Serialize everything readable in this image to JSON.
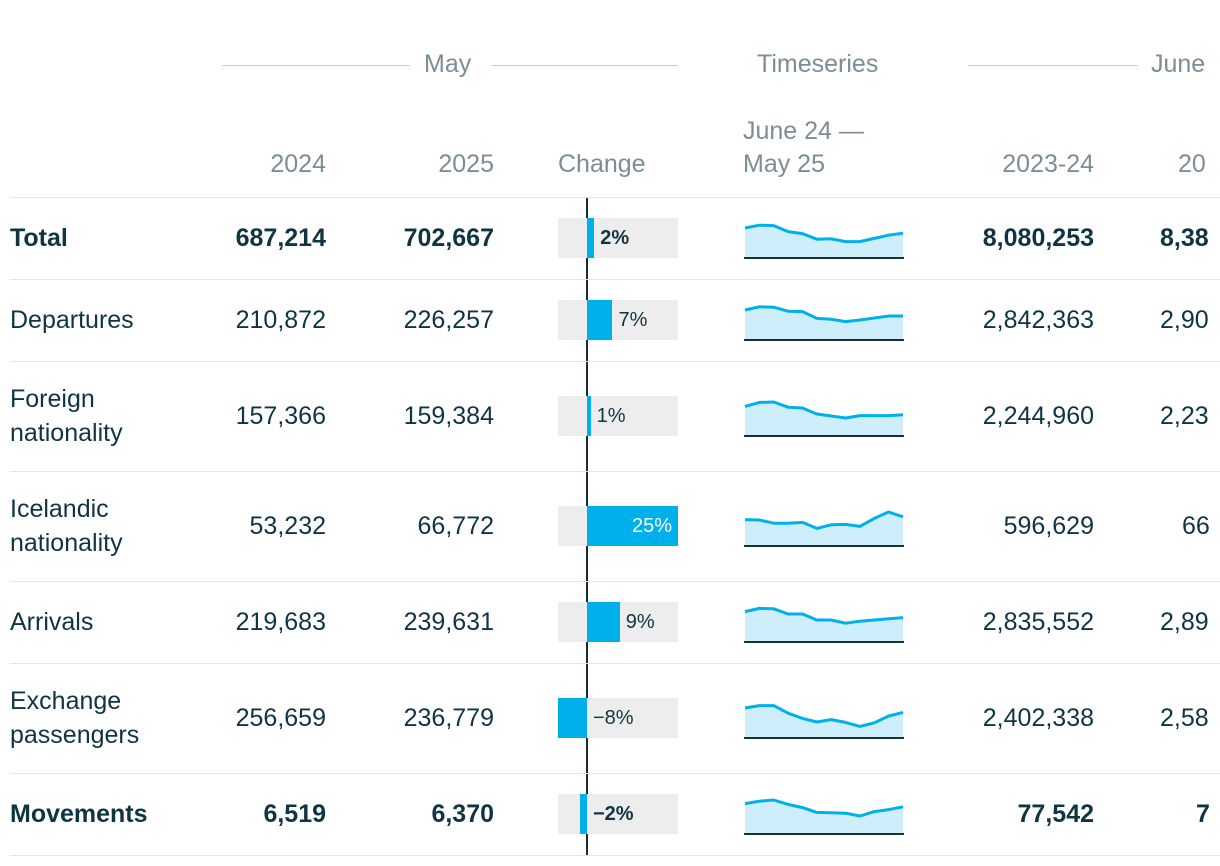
{
  "header": {
    "groups": {
      "may": "May",
      "timeseries": "Timeseries",
      "june": "June"
    },
    "columns": {
      "may_2024": "2024",
      "may_2025": "2025",
      "change": "Change",
      "timeseries_line1": "June 24 —",
      "timeseries_line2": "May 25",
      "period_2023_24": "2023-24",
      "period_next": "20"
    }
  },
  "colors": {
    "accent": "#00b0eb",
    "area_fill": "#cdeefa",
    "text": "#0f3442",
    "muted": "#7c8d96",
    "bar_background": "#ededee"
  },
  "chart_data": {
    "type": "table",
    "change_scale_max_percent": 25,
    "rows": [
      {
        "label_lines": [
          "Total"
        ],
        "bold": true,
        "may_2024": "687,214",
        "may_2025": "702,667",
        "change_pct": 2,
        "change_label": "2%",
        "timeseries": [
          7.5,
          8.2,
          8.1,
          6.6,
          6.1,
          4.7,
          4.8,
          4.1,
          4.1,
          4.9,
          5.7,
          6.2
        ],
        "period_2023_24": "8,080,253",
        "period_next": "8,38"
      },
      {
        "label_lines": [
          "Departures"
        ],
        "bold": false,
        "may_2024": "210,872",
        "may_2025": "226,257",
        "change_pct": 7,
        "change_label": "7%",
        "timeseries": [
          7.5,
          8.3,
          8.2,
          7.2,
          7.1,
          5.4,
          5.2,
          4.6,
          5.0,
          5.5,
          6.0,
          6.0
        ],
        "period_2023_24": "2,842,363",
        "period_next": "2,90"
      },
      {
        "label_lines": [
          "Foreign",
          "nationality"
        ],
        "bold": false,
        "may_2024": "157,366",
        "may_2025": "159,384",
        "change_pct": 1,
        "change_label": "1%",
        "timeseries": [
          7.4,
          8.4,
          8.5,
          7.2,
          7.0,
          5.5,
          5.0,
          4.5,
          5.1,
          5.1,
          5.1,
          5.3
        ],
        "period_2023_24": "2,244,960",
        "period_next": "2,23"
      },
      {
        "label_lines": [
          "Icelandic",
          "nationality"
        ],
        "bold": false,
        "may_2024": "53,232",
        "may_2025": "66,772",
        "change_pct": 25,
        "change_label": "25%",
        "timeseries": [
          6.6,
          6.5,
          5.7,
          5.7,
          5.9,
          4.4,
          5.3,
          5.4,
          4.9,
          6.9,
          8.5,
          7.3
        ],
        "period_2023_24": "596,629",
        "period_next": "66"
      },
      {
        "label_lines": [
          "Arrivals"
        ],
        "bold": false,
        "may_2024": "219,683",
        "may_2025": "239,631",
        "change_pct": 9,
        "change_label": "9%",
        "timeseries": [
          7.6,
          8.4,
          8.3,
          7.0,
          7.0,
          5.5,
          5.5,
          4.7,
          5.2,
          5.5,
          5.8,
          6.1
        ],
        "period_2023_24": "2,835,552",
        "period_next": "2,89"
      },
      {
        "label_lines": [
          "Exchange",
          "passengers"
        ],
        "bold": false,
        "may_2024": "256,659",
        "may_2025": "236,779",
        "change_pct": -8,
        "change_label": "−8%",
        "timeseries": [
          7.5,
          8.1,
          8.1,
          6.2,
          4.9,
          4.0,
          4.6,
          3.9,
          2.9,
          3.8,
          5.5,
          6.4
        ],
        "period_2023_24": "2,402,338",
        "period_next": "2,58"
      },
      {
        "label_lines": [
          "Movements"
        ],
        "bold": true,
        "may_2024": "6,519",
        "may_2025": "6,370",
        "change_pct": -2,
        "change_label": "−2%",
        "timeseries": [
          7.6,
          8.2,
          8.5,
          7.4,
          6.6,
          5.4,
          5.3,
          5.2,
          4.5,
          5.6,
          6.1,
          6.8
        ],
        "period_2023_24": "77,542",
        "period_next": "7"
      }
    ]
  }
}
